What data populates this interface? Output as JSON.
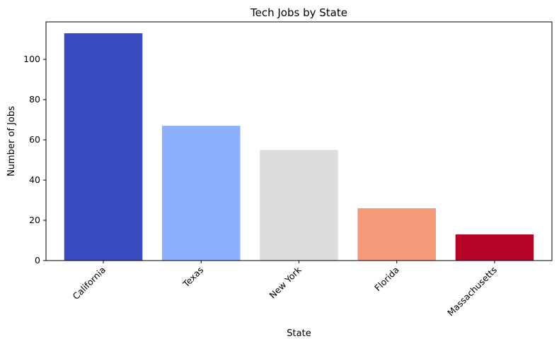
{
  "chart_data": {
    "type": "bar",
    "title": "Tech Jobs by State",
    "xlabel": "State",
    "ylabel": "Number of Jobs",
    "categories": [
      "California",
      "Texas",
      "New York",
      "Florida",
      "Massachusetts"
    ],
    "values": [
      113,
      67,
      55,
      26,
      13
    ],
    "colors": [
      "#3b4cc0",
      "#8db0fe",
      "#dddddd",
      "#f49a7b",
      "#b40426"
    ],
    "ylim": [
      0,
      118.65
    ],
    "yticks": [
      0,
      20,
      40,
      60,
      80,
      100
    ],
    "grid": false,
    "xtick_rotation": 45
  }
}
